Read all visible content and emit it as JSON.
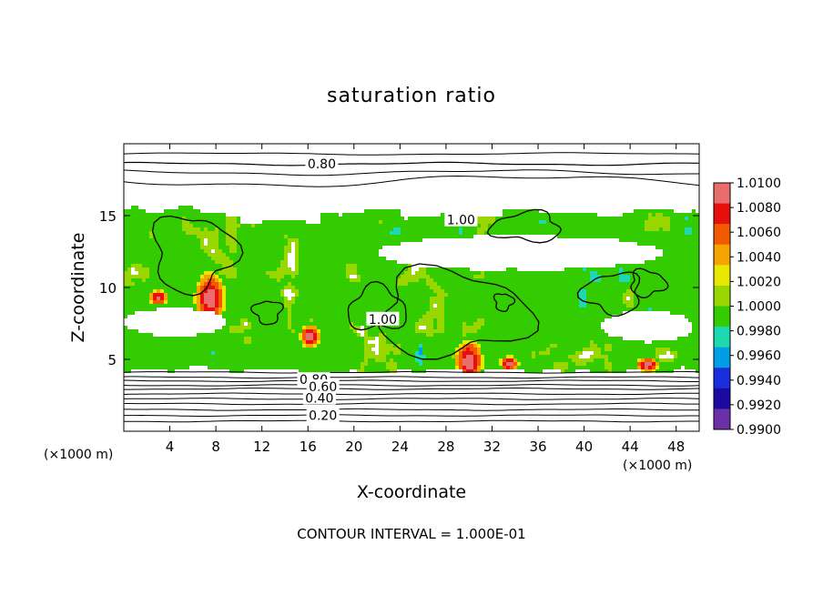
{
  "chart_data": {
    "type": "heatmap",
    "title": "saturation ratio",
    "xlabel": "X-coordinate",
    "ylabel": "Z-coordinate",
    "x_unit_label": "(×1000 m)",
    "y_unit_label": "(×1000 m)",
    "xlim": [
      0,
      50
    ],
    "ylim": [
      0,
      20
    ],
    "x_ticks": [
      {
        "value": 4,
        "label": "4"
      },
      {
        "value": 8,
        "label": "8"
      },
      {
        "value": 12,
        "label": "12"
      },
      {
        "value": 16,
        "label": "16"
      },
      {
        "value": 20,
        "label": "20"
      },
      {
        "value": 24,
        "label": "24"
      },
      {
        "value": 28,
        "label": "28"
      },
      {
        "value": 32,
        "label": "32"
      },
      {
        "value": 36,
        "label": "36"
      },
      {
        "value": 40,
        "label": "40"
      },
      {
        "value": 44,
        "label": "44"
      },
      {
        "value": 48,
        "label": "48"
      }
    ],
    "y_ticks": [
      {
        "value": 5,
        "label": "5"
      },
      {
        "value": 10,
        "label": "10"
      },
      {
        "value": 15,
        "label": "15"
      }
    ],
    "contour_interval_text": "CONTOUR INTERVAL = 1.000E-01",
    "contour_labels": [
      {
        "text": "0.80",
        "x": 17.2,
        "z": 18.6
      },
      {
        "text": "1.00",
        "x": 29.3,
        "z": 14.7
      },
      {
        "text": "1.00",
        "x": 22.5,
        "z": 7.8
      },
      {
        "text": "0.80",
        "x": 16.5,
        "z": 3.6
      },
      {
        "text": "0.60",
        "x": 17.3,
        "z": 3.1
      },
      {
        "text": "0.40",
        "x": 17.0,
        "z": 2.3
      },
      {
        "text": "0.20",
        "x": 17.3,
        "z": 1.1
      }
    ],
    "colorbar": {
      "min": 0.99,
      "max": 1.01,
      "levels": [
        "1.0100",
        "1.0080",
        "1.0060",
        "1.0040",
        "1.0020",
        "1.0000",
        "0.9980",
        "0.9960",
        "0.9940",
        "0.9920",
        "0.9900"
      ],
      "colors": [
        "#e96d6d",
        "#e80f0f",
        "#f15a00",
        "#f5a400",
        "#e8e800",
        "#9ad600",
        "#33cc00",
        "#1ed9b0",
        "#009ee8",
        "#1a2edd",
        "#1a0aa0",
        "#6b2fa8"
      ]
    }
  }
}
